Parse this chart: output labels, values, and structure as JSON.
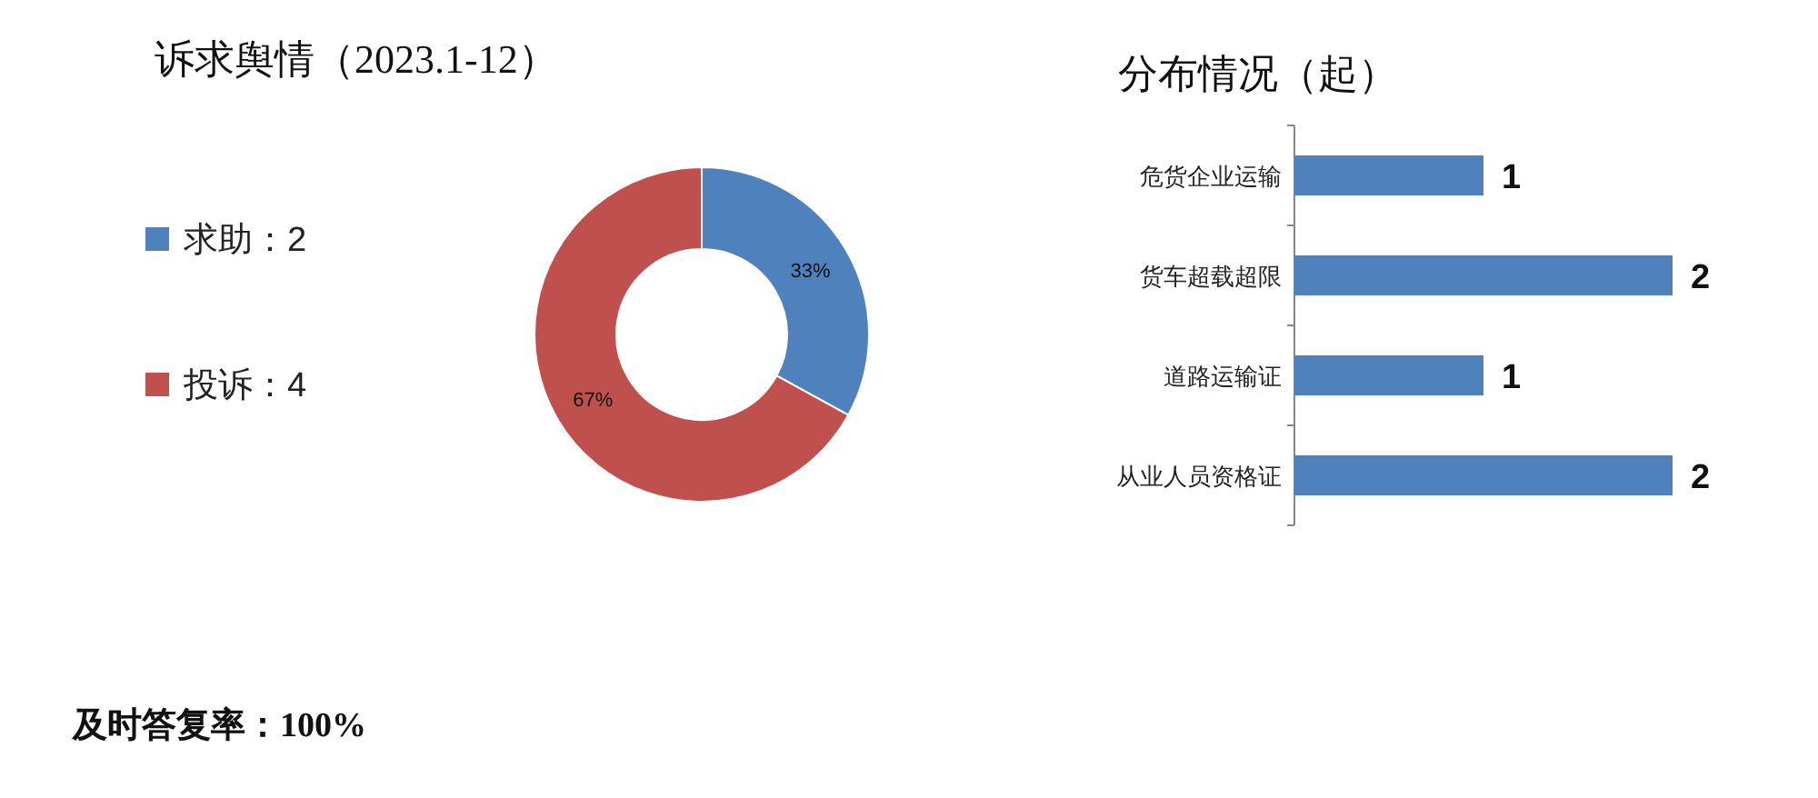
{
  "chart_data": [
    {
      "type": "donut",
      "title": "诉求舆情（2023.1-12）",
      "categories": [
        "求助：2",
        "投诉：4"
      ],
      "values": [
        33,
        67
      ],
      "colors": [
        "#4f81bd",
        "#c0504d"
      ],
      "value_labels": [
        "33%",
        "67%"
      ],
      "legend": "left",
      "annotations": [
        "及时答复率：100%"
      ]
    },
    {
      "type": "bar",
      "orientation": "horizontal",
      "title": "分布情况（起）",
      "categories": [
        "危货企业运输",
        "货车超载超限",
        "道路运输证",
        "从业人员资格证"
      ],
      "values": [
        1,
        2,
        1,
        2
      ],
      "color": "#4f81bd",
      "data_labels": true
    }
  ]
}
